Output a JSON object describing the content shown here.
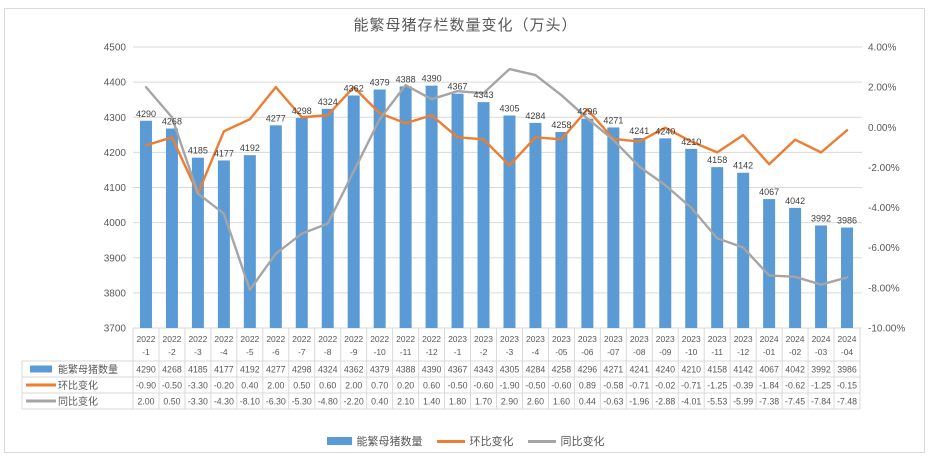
{
  "chart_data": {
    "type": "combo-bar-line",
    "title": "能繁母猪存栏数量变化（万头）",
    "cat_year": [
      "2022",
      "2022",
      "2022",
      "2022",
      "2022",
      "2022",
      "2022",
      "2022",
      "2022",
      "2022",
      "2022",
      "2022",
      "2023",
      "2023",
      "2023",
      "2023",
      "2023",
      "2023",
      "2023",
      "2023",
      "2023",
      "2023",
      "2023",
      "2023",
      "2024",
      "2024",
      "2024",
      "2024"
    ],
    "cat_month": [
      "-1",
      "-2",
      "-3",
      "-4",
      "-5",
      "-6",
      "-7",
      "-8",
      "-9",
      "-10",
      "-11",
      "-12",
      "-1",
      "-2",
      "-3",
      "-4",
      "-05",
      "-06",
      "-07",
      "-08",
      "-09",
      "-10",
      "-11",
      "-12",
      "-01",
      "-02",
      "-03",
      "-04"
    ],
    "series": [
      {
        "name": "能繁母猪数量",
        "type": "bar",
        "axis": "left",
        "color": "#5b9bd5",
        "decimals": 0,
        "values": [
          4290,
          4268,
          4185,
          4177,
          4192,
          4277,
          4298,
          4324,
          4362,
          4379,
          4388,
          4390,
          4367,
          4343,
          4305,
          4284,
          4258,
          4296,
          4271,
          4241,
          4240,
          4210,
          4158,
          4142,
          4067,
          4042,
          3992,
          3986
        ]
      },
      {
        "name": "环比变化",
        "type": "line",
        "axis": "right",
        "color": "#ed7d31",
        "decimals": 2,
        "values": [
          -0.9,
          -0.5,
          -3.3,
          -0.2,
          0.4,
          2.0,
          0.5,
          0.6,
          2.0,
          0.7,
          0.2,
          0.6,
          -0.5,
          -0.6,
          -1.9,
          -0.5,
          -0.6,
          0.89,
          -0.58,
          -0.71,
          -0.02,
          -0.71,
          -1.25,
          -0.39,
          -1.84,
          -0.62,
          -1.25,
          -0.15
        ]
      },
      {
        "name": "同比变化",
        "type": "line",
        "axis": "right",
        "color": "#a5a5a5",
        "decimals": 2,
        "values": [
          2.0,
          0.5,
          -3.3,
          -4.3,
          -8.1,
          -6.3,
          -5.3,
          -4.8,
          -2.2,
          0.4,
          2.1,
          1.4,
          1.8,
          1.7,
          2.9,
          2.6,
          1.6,
          0.44,
          -0.63,
          -1.96,
          -2.88,
          -4.01,
          -5.53,
          -5.99,
          -7.38,
          -7.45,
          -7.84,
          -7.48
        ]
      }
    ],
    "left_axis": {
      "min": 3700,
      "max": 4500,
      "ticks": [
        "4500",
        "4400",
        "4300",
        "4200",
        "4100",
        "4000",
        "3900",
        "3800",
        "3700"
      ]
    },
    "right_axis": {
      "min": -10,
      "max": 4,
      "ticks": [
        "4.00%",
        "2.00%",
        "0.00%",
        "-2.00%",
        "-4.00%",
        "-6.00%",
        "-8.00%",
        "-10.00%"
      ]
    },
    "legend": {
      "position": "bottom",
      "items": [
        "能繁母猪数量",
        "环比变化",
        "同比变化"
      ]
    },
    "data_table": {
      "show_legend_keys": true,
      "row_labels": [
        "能繁母猪数量",
        "环比变化",
        "同比变化"
      ]
    },
    "grid": true
  },
  "colors": {
    "grid": "#d9d9d9",
    "axis_text": "#595959",
    "bar_label": "#404040"
  }
}
